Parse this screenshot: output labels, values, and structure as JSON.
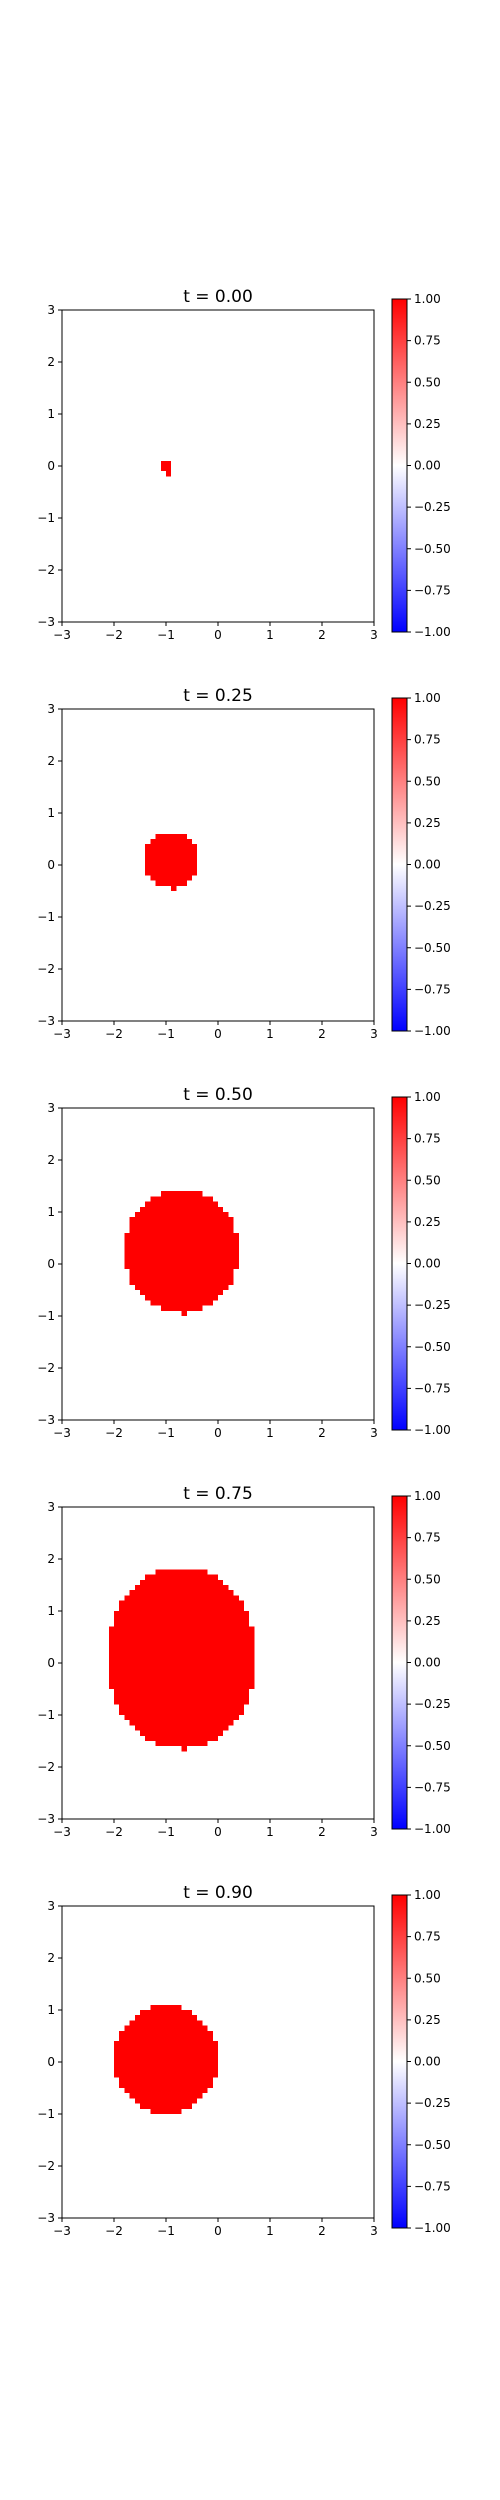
{
  "chart_data": [
    {
      "type": "heatmap",
      "title": "t = 0.00",
      "xlim": [
        -3,
        3
      ],
      "ylim": [
        -3,
        3
      ],
      "xticks": [
        -3,
        -2,
        -1,
        0,
        1,
        2,
        3
      ],
      "yticks": [
        -3,
        -2,
        -1,
        0,
        1,
        2,
        3
      ],
      "grid": false,
      "colormap": "bwr",
      "colorbar": {
        "range": [
          -1,
          1
        ],
        "ticks": [
          "1.00",
          "0.75",
          "0.50",
          "0.25",
          "0.00",
          "−0.25",
          "−0.50",
          "−0.75",
          "−1.00"
        ]
      },
      "region": {
        "value": 1.0,
        "center_x": -1.0,
        "center_y": 0.0,
        "radius_x": 0.1,
        "radius_y": 0.15,
        "y_min": -0.15,
        "y_max": 0.15
      }
    },
    {
      "type": "heatmap",
      "title": "t = 0.25",
      "xlim": [
        -3,
        3
      ],
      "ylim": [
        -3,
        3
      ],
      "xticks": [
        -3,
        -2,
        -1,
        0,
        1,
        2,
        3
      ],
      "yticks": [
        -3,
        -2,
        -1,
        0,
        1,
        2,
        3
      ],
      "grid": false,
      "colormap": "bwr",
      "colorbar": {
        "range": [
          -1,
          1
        ],
        "ticks": [
          "1.00",
          "0.75",
          "0.50",
          "0.25",
          "0.00",
          "−0.25",
          "−0.50",
          "−0.75",
          "−1.00"
        ]
      },
      "region": {
        "value": 1.0,
        "center_x": -0.9,
        "center_y": 0.1,
        "radius_x": 0.55,
        "radius_y": 0.55,
        "y_min": -0.45,
        "y_max": 0.65
      }
    },
    {
      "type": "heatmap",
      "title": "t = 0.50",
      "xlim": [
        -3,
        3
      ],
      "ylim": [
        -3,
        3
      ],
      "xticks": [
        -3,
        -2,
        -1,
        0,
        1,
        2,
        3
      ],
      "yticks": [
        -3,
        -2,
        -1,
        0,
        1,
        2,
        3
      ],
      "grid": false,
      "colormap": "bwr",
      "colorbar": {
        "range": [
          -1,
          1
        ],
        "ticks": [
          "1.00",
          "0.75",
          "0.50",
          "0.25",
          "0.00",
          "−0.25",
          "−0.50",
          "−0.75",
          "−1.00"
        ]
      },
      "region": {
        "value": 1.0,
        "center_x": -0.7,
        "center_y": 0.25,
        "radius_x": 1.1,
        "radius_y": 1.2,
        "y_min": -0.95,
        "y_max": 1.45
      }
    },
    {
      "type": "heatmap",
      "title": "t = 0.75",
      "xlim": [
        -3,
        3
      ],
      "ylim": [
        -3,
        3
      ],
      "xticks": [
        -3,
        -2,
        -1,
        0,
        1,
        2,
        3
      ],
      "yticks": [
        -3,
        -2,
        -1,
        0,
        1,
        2,
        3
      ],
      "grid": false,
      "colormap": "bwr",
      "colorbar": {
        "range": [
          -1,
          1
        ],
        "ticks": [
          "1.00",
          "0.75",
          "0.50",
          "0.25",
          "0.00",
          "−0.25",
          "−0.50",
          "−0.75",
          "−1.00"
        ]
      },
      "region": {
        "value": 1.0,
        "center_x": -0.7,
        "center_y": 0.1,
        "radius_x": 1.45,
        "radius_y": 1.75,
        "y_min": -1.65,
        "y_max": 1.85
      }
    },
    {
      "type": "heatmap",
      "title": "t = 0.90",
      "xlim": [
        -3,
        3
      ],
      "ylim": [
        -3,
        3
      ],
      "xticks": [
        -3,
        -2,
        -1,
        0,
        1,
        2,
        3
      ],
      "yticks": [
        -3,
        -2,
        -1,
        0,
        1,
        2,
        3
      ],
      "grid": false,
      "colormap": "bwr",
      "colorbar": {
        "range": [
          -1,
          1
        ],
        "ticks": [
          "1.00",
          "0.75",
          "0.50",
          "0.25",
          "0.00",
          "−0.25",
          "−0.50",
          "−0.75",
          "−1.00"
        ]
      },
      "region": {
        "value": 1.0,
        "center_x": -1.0,
        "center_y": 0.05,
        "radius_x": 1.0,
        "radius_y": 1.05,
        "y_min": -1.0,
        "y_max": 1.1
      }
    }
  ],
  "colors": {
    "positive": "#ff0000",
    "zero": "#ffffff",
    "negative": "#0000ff"
  }
}
